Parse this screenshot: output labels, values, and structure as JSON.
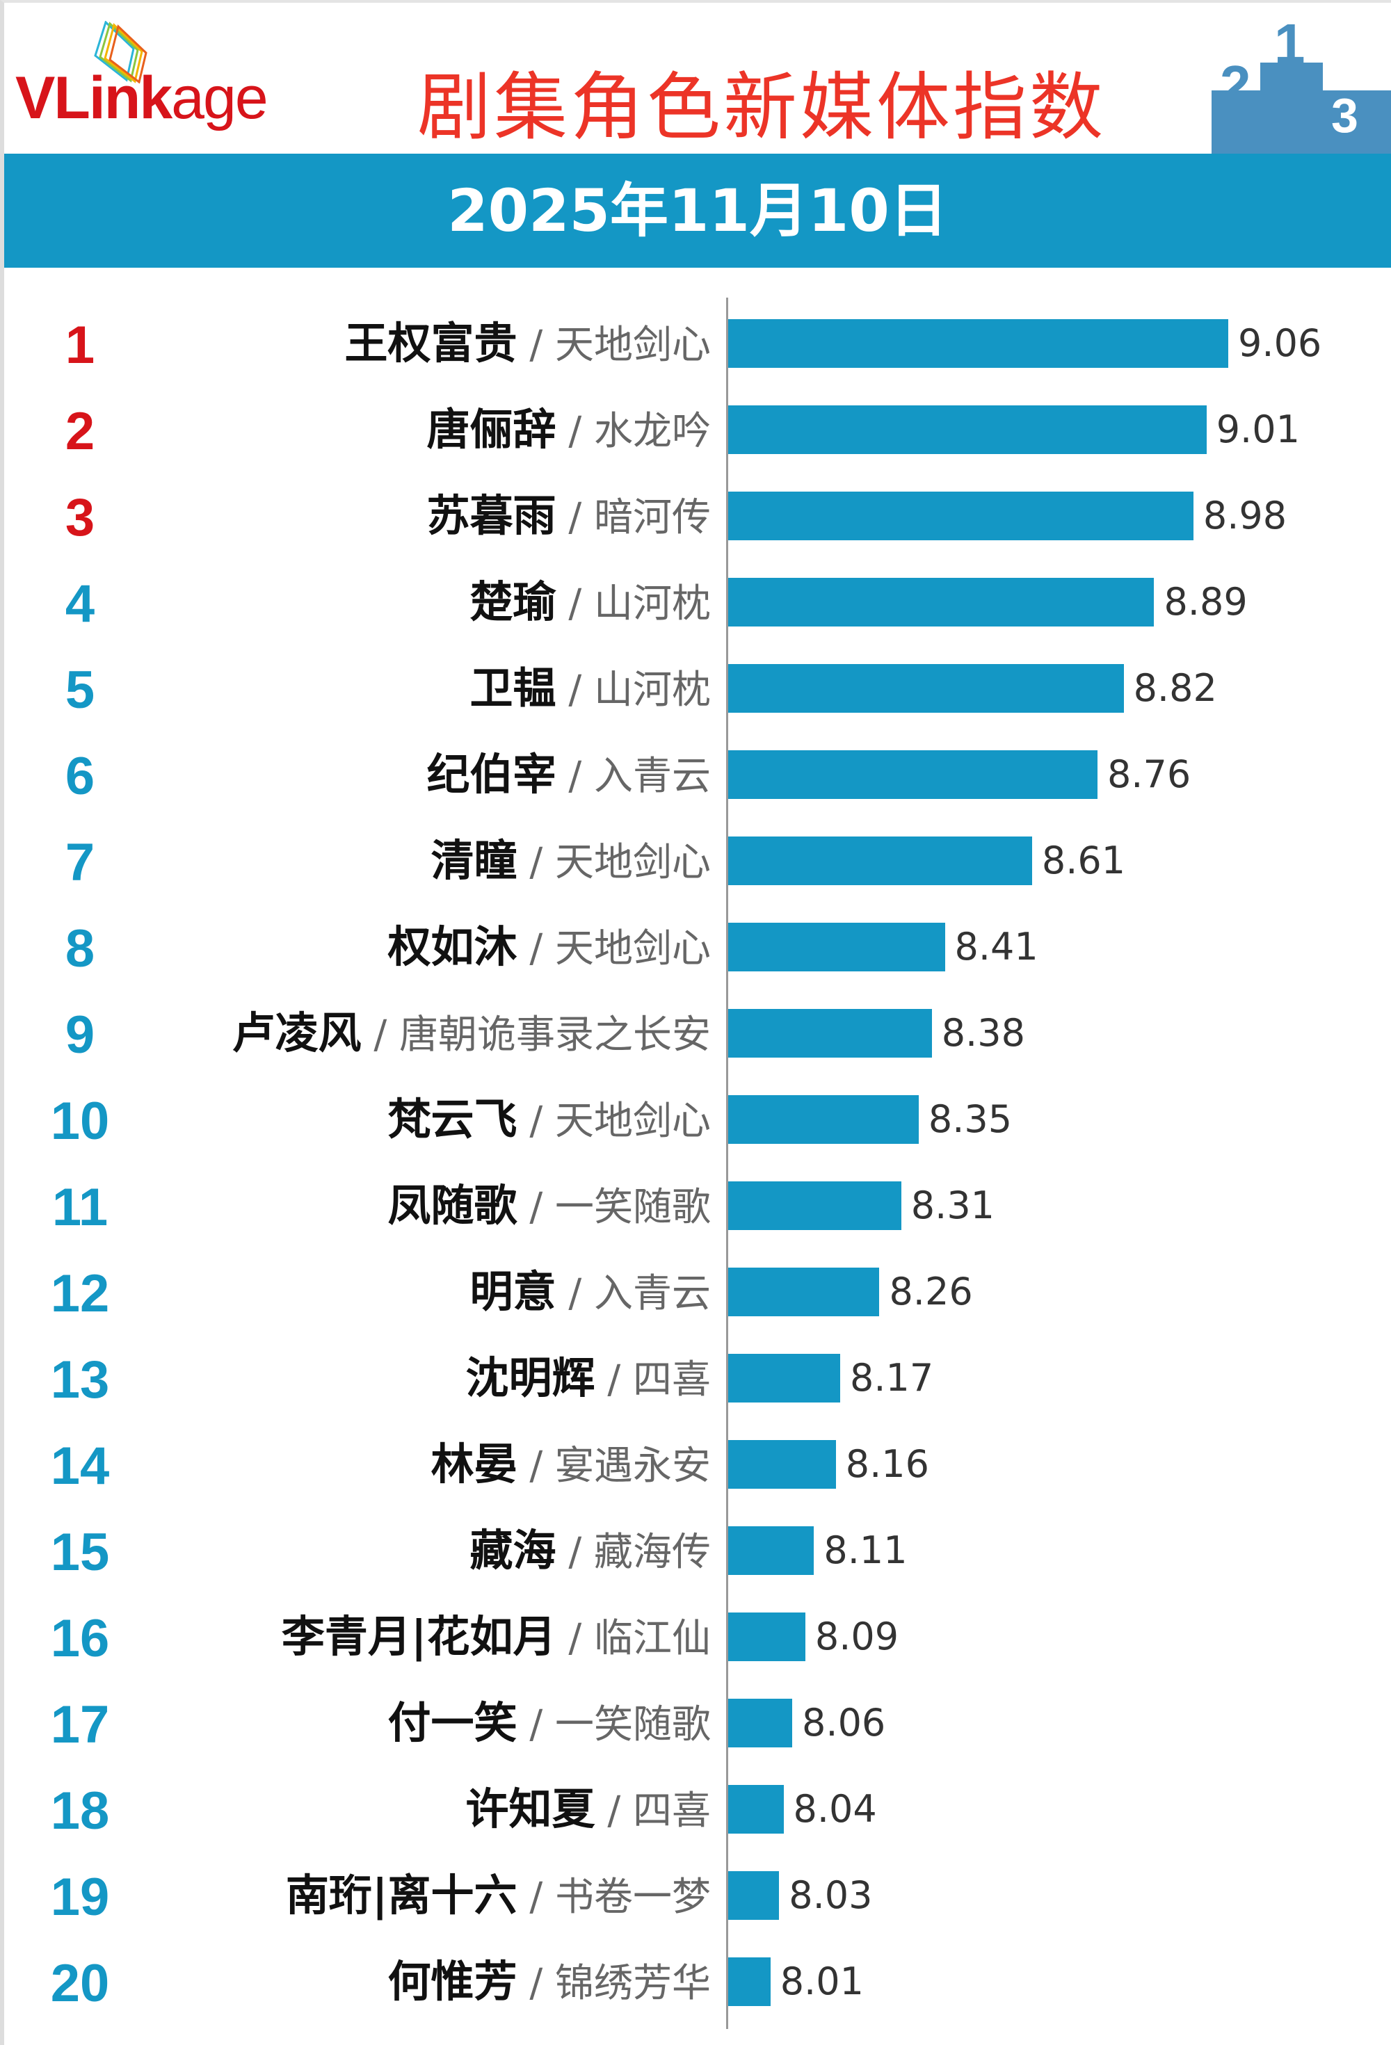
{
  "header": {
    "logo": "VLinkage",
    "title": "剧集角色新媒体指数",
    "date": "2025年11月10日",
    "podium_icon": "podium-icon"
  },
  "colors": {
    "bar": "#1497c5",
    "top3_rank": "#d7141a",
    "rank": "#1497c5",
    "title": "#ec3427",
    "band": "#1497c5"
  },
  "chart_data": {
    "type": "bar",
    "orientation": "horizontal",
    "title": "剧集角色新媒体指数",
    "subtitle": "2025年11月10日",
    "ranks": [
      "1",
      "2",
      "3",
      "4",
      "5",
      "6",
      "7",
      "8",
      "9",
      "10",
      "11",
      "12",
      "13",
      "14",
      "15",
      "16",
      "17",
      "18",
      "19",
      "20"
    ],
    "names": [
      "王权富贵",
      "唐俪辞",
      "苏暮雨",
      "楚瑜",
      "卫韫",
      "纪伯宰",
      "清瞳",
      "权如沐",
      "卢凌风",
      "梵云飞",
      "凤随歌",
      "明意",
      "沈明辉",
      "林晏",
      "藏海",
      "李青月|花如月",
      "付一笑",
      "许知夏",
      "南珩|离十六",
      "何惟芳"
    ],
    "dramas": [
      "天地剑心",
      "水龙吟",
      "暗河传",
      "山河枕",
      "山河枕",
      "入青云",
      "天地剑心",
      "天地剑心",
      "唐朝诡事录之长安",
      "天地剑心",
      "一笑随歌",
      "入青云",
      "四喜",
      "宴遇永安",
      "藏海传",
      "临江仙",
      "一笑随歌",
      "四喜",
      "书卷一梦",
      "锦绣芳华"
    ],
    "separator": "/",
    "values": [
      9.06,
      9.01,
      8.98,
      8.89,
      8.82,
      8.76,
      8.61,
      8.41,
      8.38,
      8.35,
      8.31,
      8.26,
      8.17,
      8.16,
      8.11,
      8.09,
      8.06,
      8.04,
      8.03,
      8.01
    ],
    "value_labels": [
      "9.06",
      "9.01",
      "8.98",
      "8.89",
      "8.82",
      "8.76",
      "8.61",
      "8.41",
      "8.38",
      "8.35",
      "8.31",
      "8.26",
      "8.17",
      "8.16",
      "8.11",
      "8.09",
      "8.06",
      "8.04",
      "8.03",
      "8.01"
    ],
    "xlim": [
      7.91,
      9.2
    ],
    "grid": false
  }
}
